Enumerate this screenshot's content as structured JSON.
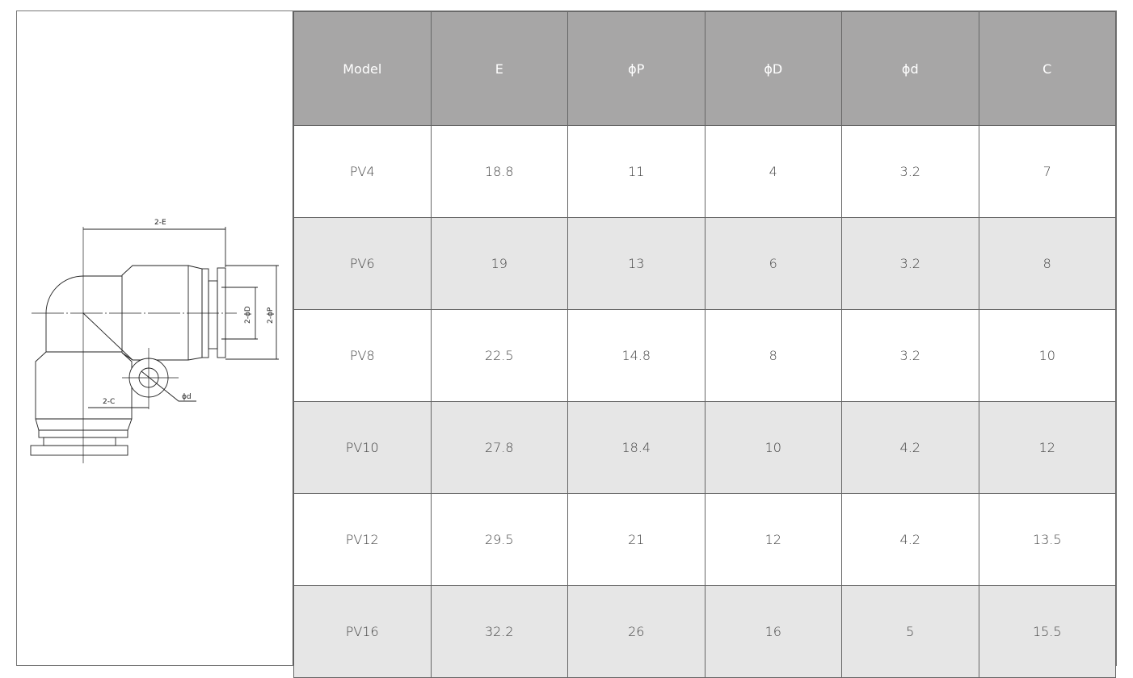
{
  "drawing": {
    "labels": {
      "E": "2-E",
      "D": "2-ϕD",
      "P": "2-ϕP",
      "C": "2-C",
      "d": "ϕd"
    }
  },
  "table": {
    "headers": [
      "Model",
      "E",
      "ϕP",
      "ϕD",
      "ϕd",
      "C"
    ],
    "rows": [
      [
        "PV4",
        "18.8",
        "11",
        "4",
        "3.2",
        "7"
      ],
      [
        "PV6",
        "19",
        "13",
        "6",
        "3.2",
        "8"
      ],
      [
        "PV8",
        "22.5",
        "14.8",
        "8",
        "3.2",
        "10"
      ],
      [
        "PV10",
        "27.8",
        "18.4",
        "10",
        "4.2",
        "12"
      ],
      [
        "PV12",
        "29.5",
        "21",
        "12",
        "4.2",
        "13.5"
      ],
      [
        "PV16",
        "32.2",
        "26",
        "16",
        "5",
        "15.5"
      ]
    ]
  },
  "colors": {
    "header_bg": "#a7a6a6",
    "alt_row_bg": "#e6e6e6"
  }
}
